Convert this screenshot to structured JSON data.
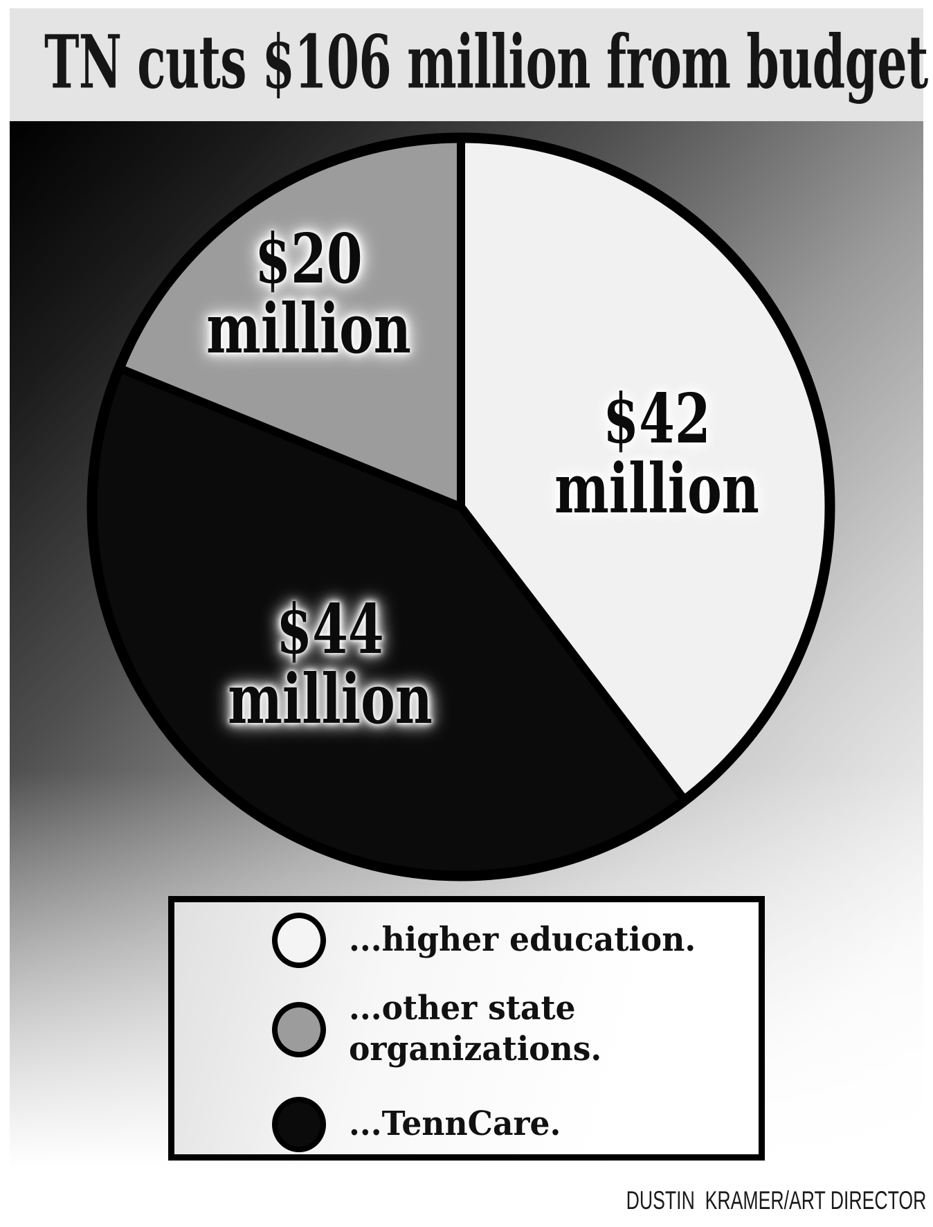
{
  "title": "TN cuts $106 million from budget",
  "credit": "DUSTIN  KRAMER/ART DIRECTOR",
  "colors": {
    "title_bar_bg": "#e4e4e4",
    "outline": "#000000",
    "background_gradient_start": "#000000",
    "background_gradient_end": "#ffffff",
    "white_slice": "#f1f1f1",
    "black_slice": "#0b0b0b",
    "gray_slice": "#9c9c9c"
  },
  "chart_data": {
    "type": "pie",
    "title": "TN cuts $106 million from budget",
    "total_value": 106,
    "units": "millions of dollars",
    "start_angle_deg_from_12": 0,
    "direction": "clockwise",
    "legend_position": "bottom",
    "slices": [
      {
        "name": "higher education",
        "value": 42,
        "value_label": "$42",
        "unit_label": "million",
        "color": "#f1f1f1"
      },
      {
        "name": "TennCare",
        "value": 44,
        "value_label": "$44",
        "unit_label": "million",
        "color": "#0b0b0b"
      },
      {
        "name": "other state organizations",
        "value": 20,
        "value_label": "$20",
        "unit_label": "million",
        "color": "#9c9c9c"
      }
    ]
  },
  "legend": {
    "items": [
      {
        "swatch": "white-circle",
        "lines": [
          "...higher education."
        ]
      },
      {
        "swatch": "gray-circle",
        "lines": [
          "...other state",
          "organizations."
        ]
      },
      {
        "swatch": "black-circle",
        "lines": [
          "...TennCare."
        ]
      }
    ]
  }
}
